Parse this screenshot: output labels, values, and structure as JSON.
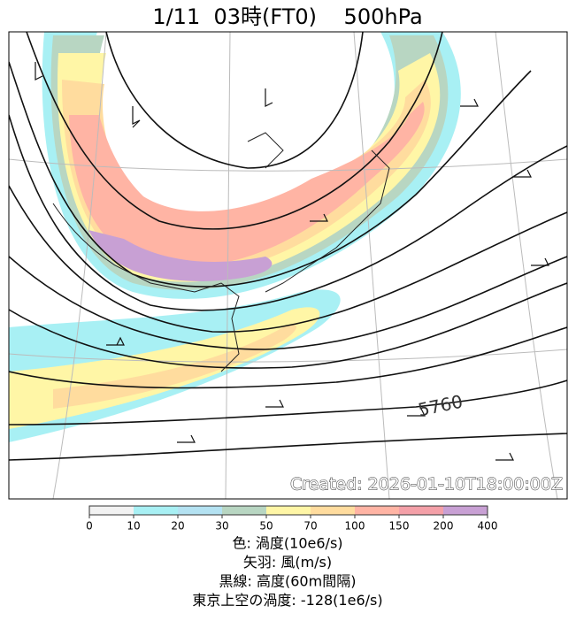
{
  "title": "1/11  03時(FT0)    500hPa",
  "map": {
    "contour_label": "5760",
    "created": "Created: 2026-01-10T18:00:00Z"
  },
  "colorbar": {
    "ticks": [
      0,
      10,
      20,
      30,
      50,
      70,
      100,
      150,
      200,
      400
    ],
    "colors": [
      "#f2f2f2",
      "#a8f0f4",
      "#b4e2f2",
      "#b8d6c2",
      "#fff6a6",
      "#ffdc9e",
      "#ffb4a4",
      "#f4a0a8",
      "#c8a0d4"
    ]
  },
  "legend_lines": [
    "色: 渦度(10e6/s)",
    "矢羽: 風(m/s)",
    "黒線: 高度(60m間隔)",
    "東京上空の渦度: -128(1e6/s)"
  ]
}
